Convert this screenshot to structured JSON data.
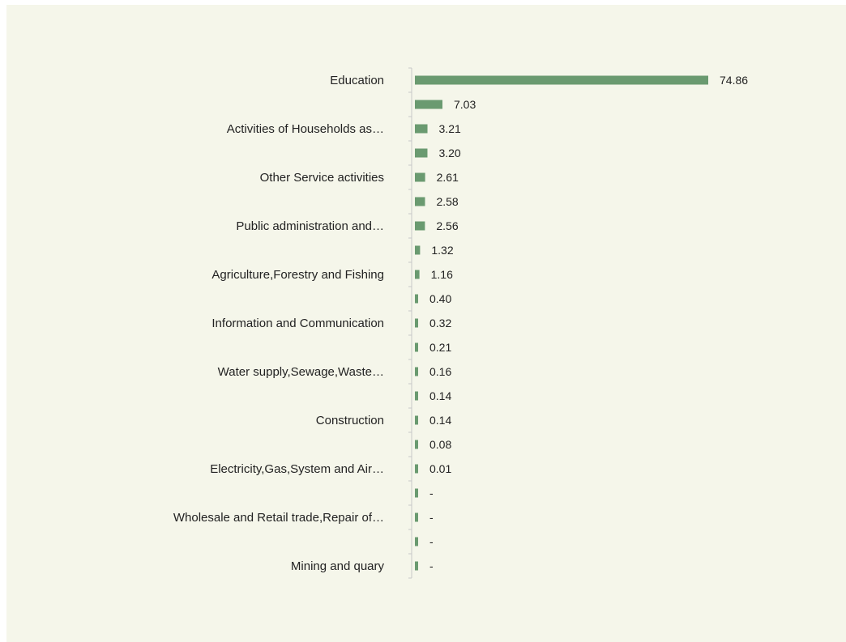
{
  "chart_data": {
    "type": "bar",
    "orientation": "horizontal",
    "title": "",
    "xlabel": "",
    "ylabel": "",
    "grid": false,
    "bar_color": "#6a9a70",
    "background_color": "#f5f6ea",
    "categories": [
      "Education",
      "",
      "Activities of Households as…",
      "",
      "Other Service activities",
      "",
      "Public administration and…",
      "",
      "Agriculture,Forestry and Fishing",
      "",
      "Information and Communication",
      "",
      "Water supply,Sewage,Waste…",
      "",
      "Construction",
      "",
      "Electricity,Gas,System and Air…",
      "",
      "Wholesale and Retail trade,Repair of…",
      "",
      "Mining and quary"
    ],
    "values": [
      74.86,
      7.03,
      3.21,
      3.2,
      2.61,
      2.58,
      2.56,
      1.32,
      1.16,
      0.4,
      0.32,
      0.21,
      0.16,
      0.14,
      0.14,
      0.08,
      0.01,
      0,
      0,
      0,
      0
    ],
    "value_labels": [
      "74.86",
      "7.03",
      "3.21",
      "3.20",
      "2.61",
      "2.58",
      "2.56",
      "1.32",
      "1.16",
      "0.40",
      "0.32",
      "0.21",
      "0.16",
      "0.14",
      "0.14",
      "0.08",
      "0.01",
      "-",
      "-",
      "-",
      "-"
    ]
  }
}
